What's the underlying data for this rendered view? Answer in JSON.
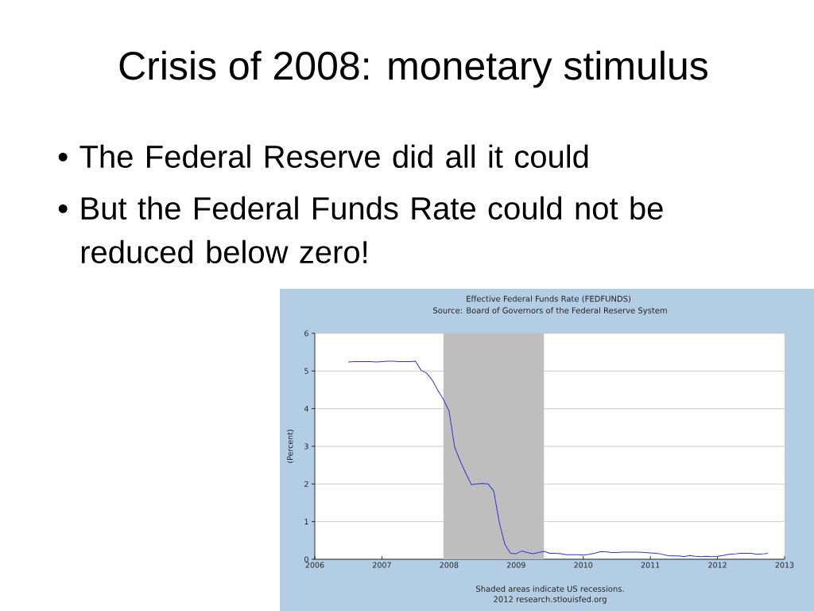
{
  "chart_data": {
    "type": "line",
    "title": "Crisis of 2008: monetary stimulus",
    "subtitle": "Effective Federal Funds Rate (FEDFUNDS)",
    "ylabel": "(Percent)",
    "annotations": [
      "• The Federal Reserve did all it could",
      "• But the Federal Funds Rate could not be reduced below zero!",
      "Source: Board of Governors of the Federal Reserve System",
      "Shaded areas indicate US recessions.",
      "2012 research.stlouisfed.org"
    ],
    "x": [
      "2006-07",
      "2006-08",
      "2006-09",
      "2006-10",
      "2006-11",
      "2006-12",
      "2007-01",
      "2007-02",
      "2007-03",
      "2007-04",
      "2007-05",
      "2007-06",
      "2007-07",
      "2007-08",
      "2007-09",
      "2007-10",
      "2007-11",
      "2007-12",
      "2008-01",
      "2008-02",
      "2008-03",
      "2008-04",
      "2008-05",
      "2008-06",
      "2008-07",
      "2008-08",
      "2008-09",
      "2008-10",
      "2008-11",
      "2008-12",
      "2009-01",
      "2009-02",
      "2009-03",
      "2009-04",
      "2009-05",
      "2009-06",
      "2009-07",
      "2009-08",
      "2009-09",
      "2009-10",
      "2009-11",
      "2009-12",
      "2010-01",
      "2010-02",
      "2010-03",
      "2010-04",
      "2010-05",
      "2010-06",
      "2010-07",
      "2010-08",
      "2010-09",
      "2010-10",
      "2010-11",
      "2010-12",
      "2011-01",
      "2011-02",
      "2011-03",
      "2011-04",
      "2011-05",
      "2011-06",
      "2011-07",
      "2011-08",
      "2011-09",
      "2011-10",
      "2011-11",
      "2011-12",
      "2012-01",
      "2012-02",
      "2012-03",
      "2012-04",
      "2012-05",
      "2012-06",
      "2012-07",
      "2012-08",
      "2012-09",
      "2012-10"
    ],
    "series": [
      {
        "color": "#3333dd",
        "values": [
          5.24,
          5.25,
          5.25,
          5.25,
          5.25,
          5.24,
          5.25,
          5.26,
          5.26,
          5.25,
          5.25,
          5.25,
          5.26,
          5.02,
          4.94,
          4.76,
          4.49,
          4.24,
          3.94,
          2.98,
          2.61,
          2.28,
          1.98,
          2.0,
          2.01,
          2.0,
          1.81,
          0.97,
          0.39,
          0.16,
          0.15,
          0.22,
          0.18,
          0.15,
          0.18,
          0.21,
          0.16,
          0.16,
          0.15,
          0.12,
          0.12,
          0.12,
          0.11,
          0.13,
          0.16,
          0.2,
          0.2,
          0.18,
          0.18,
          0.19,
          0.19,
          0.19,
          0.19,
          0.18,
          0.17,
          0.16,
          0.14,
          0.1,
          0.09,
          0.09,
          0.07,
          0.1,
          0.08,
          0.07,
          0.08,
          0.07,
          0.08,
          0.1,
          0.13,
          0.14,
          0.16,
          0.16,
          0.16,
          0.13,
          0.14,
          0.16
        ]
      }
    ],
    "xlim": [
      "2006",
      "2013"
    ],
    "xticks": [
      "2006",
      "2007",
      "2008",
      "2009",
      "2010",
      "2011",
      "2012",
      "2013"
    ],
    "ylim": [
      0,
      6
    ],
    "yticks": [
      0,
      1,
      2,
      3,
      4,
      5,
      6
    ],
    "grid": "y",
    "bands": [
      {
        "axis": "x",
        "from": "2007-12",
        "to": "2009-06",
        "color": "#bebebe"
      }
    ],
    "marker": "none",
    "line_style": "solid"
  }
}
